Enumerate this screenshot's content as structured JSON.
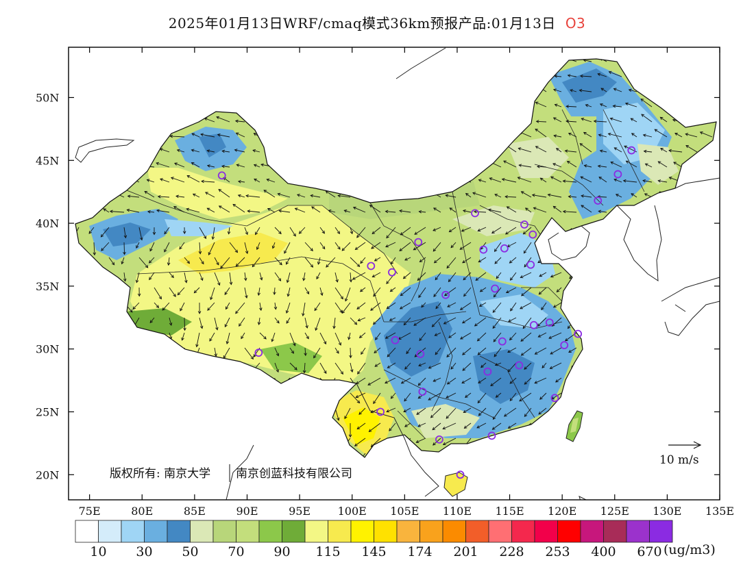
{
  "title": {
    "main": "2025年01月13日WRF/cmaq模式36km预报产品:01月13日",
    "pollutant": "O3"
  },
  "map": {
    "extent": {
      "lon_min": 73,
      "lon_max": 135,
      "lat_min": 18,
      "lat_max": 54
    },
    "lat_ticks": [
      {
        "lat": 50,
        "label": "50N"
      },
      {
        "lat": 45,
        "label": "45N"
      },
      {
        "lat": 40,
        "label": "40N"
      },
      {
        "lat": 35,
        "label": "35N"
      },
      {
        "lat": 30,
        "label": "30N"
      },
      {
        "lat": 25,
        "label": "25N"
      },
      {
        "lat": 20,
        "label": "20N"
      }
    ],
    "lon_ticks": [
      {
        "lon": 75,
        "label": "75E"
      },
      {
        "lon": 80,
        "label": "80E"
      },
      {
        "lon": 85,
        "label": "85E"
      },
      {
        "lon": 90,
        "label": "90E"
      },
      {
        "lon": 95,
        "label": "95E"
      },
      {
        "lon": 100,
        "label": "100E"
      },
      {
        "lon": 105,
        "label": "105E"
      },
      {
        "lon": 110,
        "label": "110E"
      },
      {
        "lon": 115,
        "label": "115E"
      },
      {
        "lon": 120,
        "label": "120E"
      },
      {
        "lon": 125,
        "label": "125E"
      },
      {
        "lon": 130,
        "label": "130E"
      },
      {
        "lon": 135,
        "label": "135E"
      }
    ],
    "copyright": "版权所有: 南京大学",
    "copyright_company": "南京创蓝科技有限公司",
    "wind_reference": "10 m/s"
  },
  "cities": [
    {
      "lon": 87.6,
      "lat": 43.8
    },
    {
      "lon": 91.1,
      "lat": 29.7
    },
    {
      "lon": 101.8,
      "lat": 36.6
    },
    {
      "lon": 103.8,
      "lat": 36.1
    },
    {
      "lon": 106.3,
      "lat": 38.5
    },
    {
      "lon": 111.7,
      "lat": 40.8
    },
    {
      "lon": 112.5,
      "lat": 37.9
    },
    {
      "lon": 114.5,
      "lat": 38.0
    },
    {
      "lon": 116.4,
      "lat": 39.9
    },
    {
      "lon": 117.2,
      "lat": 39.1
    },
    {
      "lon": 117.0,
      "lat": 36.7
    },
    {
      "lon": 113.6,
      "lat": 34.8
    },
    {
      "lon": 108.9,
      "lat": 34.3
    },
    {
      "lon": 117.3,
      "lat": 31.9
    },
    {
      "lon": 118.8,
      "lat": 32.1
    },
    {
      "lon": 121.5,
      "lat": 31.2
    },
    {
      "lon": 120.2,
      "lat": 30.3
    },
    {
      "lon": 114.3,
      "lat": 30.6
    },
    {
      "lon": 104.1,
      "lat": 30.7
    },
    {
      "lon": 106.5,
      "lat": 29.6
    },
    {
      "lon": 112.9,
      "lat": 28.2
    },
    {
      "lon": 115.9,
      "lat": 28.7
    },
    {
      "lon": 119.3,
      "lat": 26.1
    },
    {
      "lon": 106.7,
      "lat": 26.6
    },
    {
      "lon": 102.7,
      "lat": 25.0
    },
    {
      "lon": 108.3,
      "lat": 22.8
    },
    {
      "lon": 113.3,
      "lat": 23.1
    },
    {
      "lon": 110.3,
      "lat": 20.0
    },
    {
      "lon": 123.4,
      "lat": 41.8
    },
    {
      "lon": 125.3,
      "lat": 43.9
    },
    {
      "lon": 126.6,
      "lat": 45.8
    }
  ],
  "legend": {
    "colors": [
      "#ffffff",
      "#d4ecfa",
      "#9fd5f5",
      "#6aafe0",
      "#4388c3",
      "#dbe8b6",
      "#b8d67a",
      "#c3de7c",
      "#8cc84a",
      "#6fac38",
      "#f3f785",
      "#f7ea4e",
      "#fff200",
      "#ffe100",
      "#f9b43d",
      "#f9a21c",
      "#fb8b00",
      "#f25e29",
      "#ff6f73",
      "#f4284d",
      "#f2004a",
      "#ff0000",
      "#c7177c",
      "#a82c58",
      "#9b32cc",
      "#8b2be2"
    ],
    "labels": [
      "10",
      "30",
      "50",
      "70",
      "90",
      "115",
      "145",
      "174",
      "201",
      "228",
      "253",
      "400",
      "670"
    ],
    "unit": "(ug/m3)"
  }
}
